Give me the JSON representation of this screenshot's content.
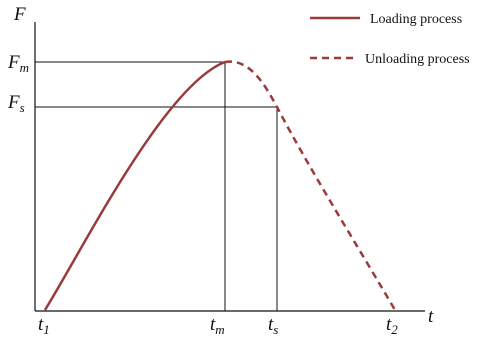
{
  "axes": {
    "y_label": "F",
    "x_label": "t"
  },
  "y_marks": [
    {
      "base": "F",
      "sub": "m"
    },
    {
      "base": "F",
      "sub": "s"
    }
  ],
  "x_marks": [
    {
      "base": "t",
      "sub": "1"
    },
    {
      "base": "t",
      "sub": "m"
    },
    {
      "base": "t",
      "sub": "s"
    },
    {
      "base": "t",
      "sub": "2"
    }
  ],
  "legend": [
    {
      "name": "Loading process"
    },
    {
      "name": "Unloading process"
    }
  ]
}
